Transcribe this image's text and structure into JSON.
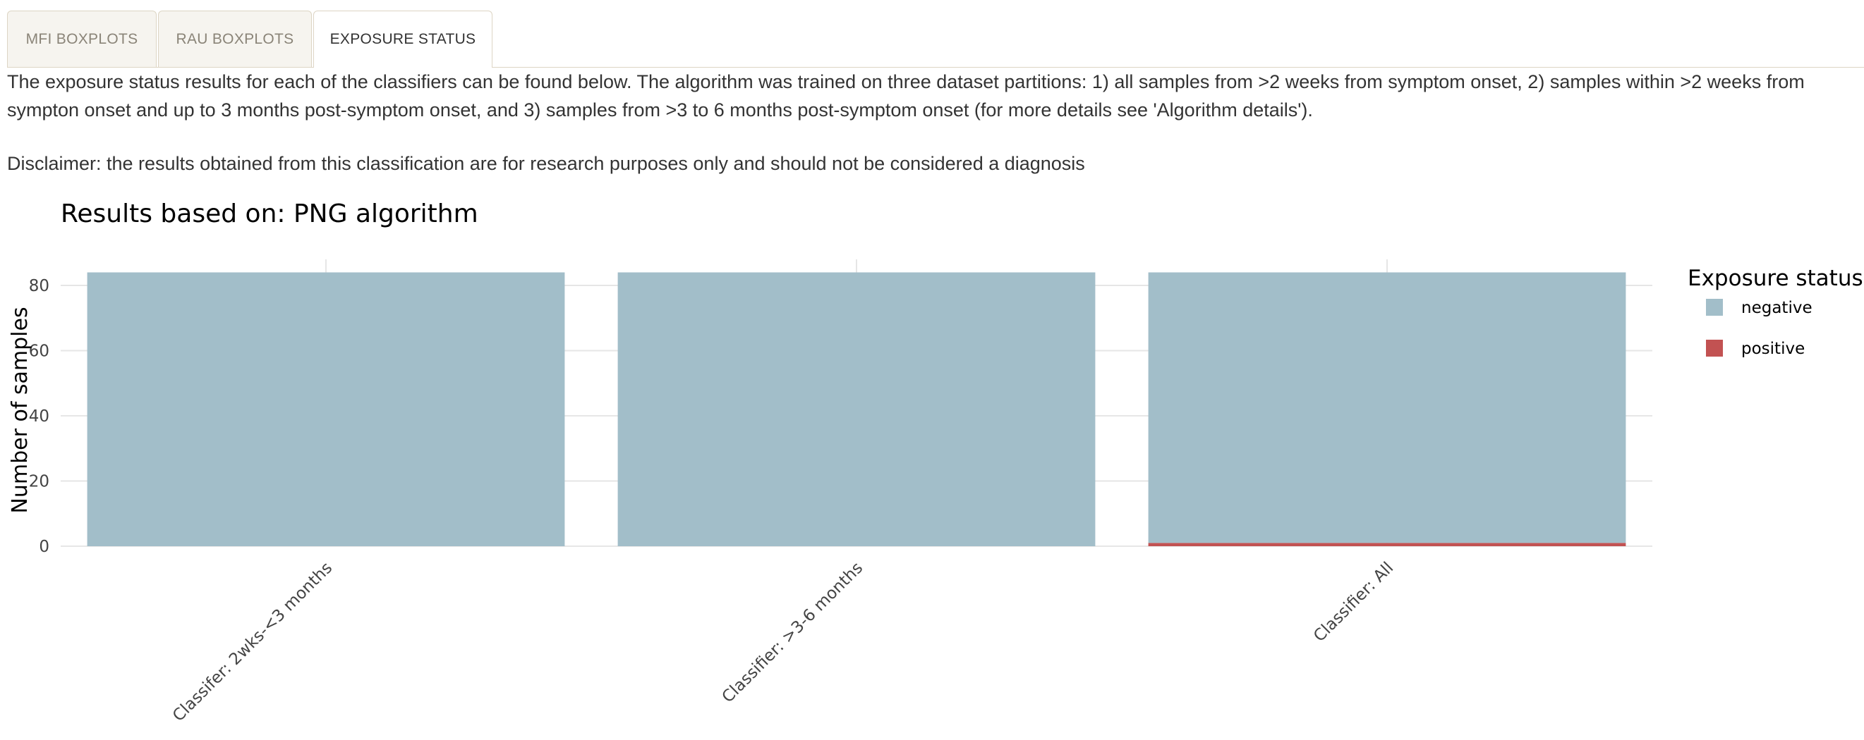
{
  "tabs": [
    {
      "label": "MFI BOXPLOTS",
      "active": false
    },
    {
      "label": "RAU BOXPLOTS",
      "active": false
    },
    {
      "label": "EXPOSURE STATUS",
      "active": true
    }
  ],
  "intro_text": "The exposure status results for each of the classifiers can be found below. The algorithm was trained on three dataset partitions: 1) all samples from >2 weeks from symptom onset, 2) samples within >2 weeks from sympton onset and up to 3 months post-symptom onset, and 3) samples from >3 to 6 months post-symptom onset (for more details see 'Algorithm details').",
  "disclaimer_text": "Disclaimer: the results obtained from this classification are for research purposes only and should not be considered a diagnosis",
  "colors": {
    "negative": "#a2bec9",
    "positive": "#c25252",
    "grid": "#e6e6e6"
  },
  "chart_data": {
    "type": "bar",
    "stacked": true,
    "title": "Results based on: PNG algorithm",
    "xlabel": "",
    "ylabel": "Number of samples",
    "categories": [
      "Classifer: 2wks-<3 months",
      "Classifier: >3-6 months",
      "Classifier: All"
    ],
    "series": [
      {
        "name": "negative",
        "values": [
          84,
          84,
          83
        ]
      },
      {
        "name": "positive",
        "values": [
          0,
          0,
          1
        ]
      }
    ],
    "ylim": [
      0,
      88
    ],
    "yticks": [
      0,
      20,
      40,
      60,
      80
    ],
    "grid": true,
    "legend": {
      "title": "Exposure status",
      "position": "right"
    }
  }
}
